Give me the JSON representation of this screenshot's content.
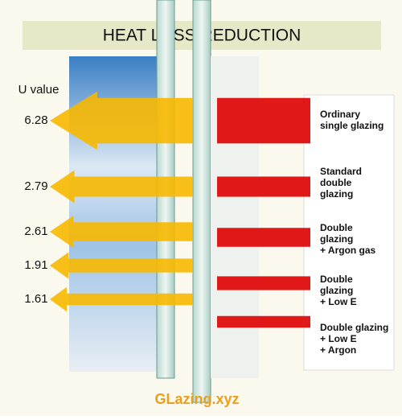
{
  "chart_data": {
    "type": "arrow",
    "title": "HEAT LOSS REDUCTION",
    "y_label": "U value",
    "categories": [
      "Ordinary\nsingle glazing",
      "Standard\ndouble\nglazing",
      "Double\nglazing\n+ Argon gas",
      "Double\nglazing\n+ Low E",
      "Double glazing\n+ Low E\n+ Argon"
    ],
    "values": [
      6.28,
      2.79,
      2.61,
      1.91,
      1.61
    ],
    "arrow_color": "#f7b800",
    "bar_color": "#e01818",
    "footer": "GLazing.xyz"
  }
}
